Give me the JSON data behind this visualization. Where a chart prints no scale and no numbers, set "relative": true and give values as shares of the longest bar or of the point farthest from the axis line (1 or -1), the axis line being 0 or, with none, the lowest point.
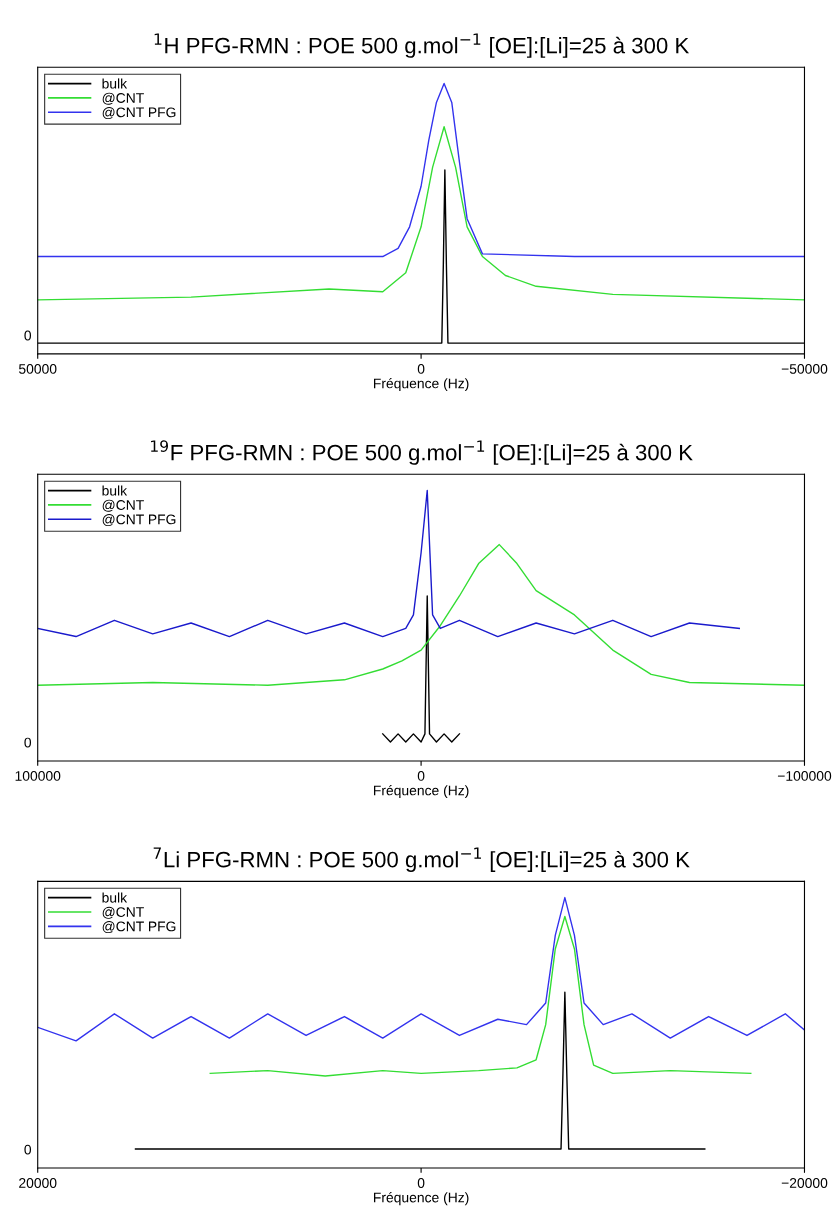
{
  "chart_data": [
    {
      "type": "line",
      "title": "$^{1}$H PFG-RMN : POE 500 g.mol$^{−1}$ [OE]:[Li]=25 à 300 K",
      "xlabel": "Fréquence (Hz)",
      "relative": true,
      "xlim": [
        50000,
        -50000
      ],
      "xticks": [
        50000,
        0,
        {
          "value": -50000,
          "label": "−50000"
        }
      ],
      "legend": "top left",
      "annotations": [
        "0"
      ],
      "series": [
        {
          "name": "bulk",
          "color": "#000000",
          "x": [
            50000,
            -2700,
            -2900,
            -3100,
            -3300,
            -3500,
            -50000
          ],
          "values": [
            0.04,
            0.04,
            0.33,
            0.68,
            0.33,
            0.04,
            0.04
          ]
        },
        {
          "name": "@CNT",
          "color": "#33dd33",
          "x": [
            50000,
            30000,
            12000,
            5000,
            2000,
            0,
            -1500,
            -3000,
            -4500,
            -6000,
            -8000,
            -11000,
            -15000,
            -25000,
            -50000
          ],
          "values": [
            0.2,
            0.21,
            0.24,
            0.23,
            0.3,
            0.47,
            0.69,
            0.84,
            0.69,
            0.47,
            0.36,
            0.29,
            0.25,
            0.22,
            0.2
          ]
        },
        {
          "name": "@CNT PFG",
          "color": "#3333ee",
          "x": [
            50000,
            20000,
            8000,
            5000,
            3000,
            1500,
            0,
            -1000,
            -2000,
            -3000,
            -4000,
            -5000,
            -6000,
            -8000,
            -20000,
            -50000
          ],
          "values": [
            0.36,
            0.36,
            0.36,
            0.36,
            0.39,
            0.47,
            0.62,
            0.79,
            0.93,
            1.0,
            0.93,
            0.71,
            0.5,
            0.37,
            0.36,
            0.36
          ]
        }
      ]
    },
    {
      "type": "line",
      "title": "$^{19}$F PFG-RMN : POE 500 g.mol$^{−1}$ [OE]:[Li]=25 à 300 K",
      "xlabel": "Fréquence (Hz)",
      "relative": true,
      "xlim": [
        100000,
        -100000
      ],
      "xticks": [
        100000,
        0,
        {
          "value": -100000,
          "label": "−100000"
        }
      ],
      "legend": "top left",
      "annotations": [
        "0"
      ],
      "series": [
        {
          "name": "bulk",
          "color": "#000000",
          "x": [
            10000,
            8000,
            6000,
            4000,
            2000,
            0,
            -1000,
            -1600,
            -2200,
            -4000,
            -6000,
            -8000,
            -10000
          ],
          "values": [
            0.1,
            0.07,
            0.1,
            0.07,
            0.1,
            0.07,
            0.1,
            0.61,
            0.1,
            0.07,
            0.1,
            0.07,
            0.1
          ]
        },
        {
          "name": "@CNT",
          "color": "#33dd33",
          "x": [
            100000,
            70000,
            40000,
            20000,
            10000,
            5000,
            0,
            -5000,
            -10000,
            -15000,
            -20400,
            -25000,
            -30000,
            -40000,
            -50000,
            -60000,
            -70000,
            -100000
          ],
          "values": [
            0.28,
            0.29,
            0.28,
            0.3,
            0.34,
            0.37,
            0.41,
            0.5,
            0.61,
            0.73,
            0.8,
            0.73,
            0.63,
            0.54,
            0.41,
            0.32,
            0.29,
            0.28
          ]
        },
        {
          "name": "@CNT PFG",
          "color": "#1a1acc",
          "x": [
            100000,
            90000,
            80000,
            70000,
            60000,
            50000,
            40000,
            30000,
            20000,
            10000,
            4000,
            2000,
            0,
            -1600,
            -3000,
            -5000,
            -10000,
            -20000,
            -30000,
            -40000,
            -50000,
            -60000,
            -70000,
            -83000
          ],
          "values": [
            0.49,
            0.46,
            0.52,
            0.47,
            0.51,
            0.46,
            0.52,
            0.47,
            0.51,
            0.46,
            0.49,
            0.54,
            0.77,
            1.0,
            0.54,
            0.49,
            0.52,
            0.46,
            0.51,
            0.47,
            0.52,
            0.46,
            0.51,
            0.49
          ]
        }
      ]
    },
    {
      "type": "line",
      "title": "$^{7}$Li PFG-RMN : POE 500 g.mol$^{−1}$ [OE]:[Li]=25 à 300 K",
      "xlabel": "Fréquence (Hz)",
      "relative": true,
      "xlim": [
        20000,
        -20000
      ],
      "xticks": [
        20000,
        0,
        {
          "value": -20000,
          "label": "−20000"
        }
      ],
      "legend": "top left",
      "annotations": [
        "0"
      ],
      "series": [
        {
          "name": "bulk",
          "color": "#000000",
          "x": [
            14900,
            -7300,
            -7400,
            -7500,
            -7600,
            -7700,
            -14800
          ],
          "values": [
            0.07,
            0.07,
            0.35,
            0.65,
            0.35,
            0.07,
            0.07
          ]
        },
        {
          "name": "@CNT",
          "color": "#33dd33",
          "x": [
            11000,
            8000,
            5000,
            2000,
            0,
            -3000,
            -5000,
            -6000,
            -6500,
            -7000,
            -7500,
            -8000,
            -8500,
            -9000,
            -10000,
            -13000,
            -17200
          ],
          "values": [
            0.35,
            0.36,
            0.34,
            0.36,
            0.35,
            0.36,
            0.37,
            0.4,
            0.53,
            0.81,
            0.93,
            0.81,
            0.53,
            0.38,
            0.35,
            0.36,
            0.35
          ]
        },
        {
          "name": "@CNT PFG",
          "color": "#3333ee",
          "x": [
            20000,
            18000,
            16000,
            14000,
            12000,
            10000,
            8000,
            6000,
            4000,
            2000,
            0,
            -2000,
            -4000,
            -5500,
            -6500,
            -7000,
            -7500,
            -8000,
            -8500,
            -9500,
            -11000,
            -13000,
            -15000,
            -17000,
            -19000,
            -20000
          ],
          "values": [
            0.52,
            0.47,
            0.57,
            0.48,
            0.56,
            0.48,
            0.57,
            0.49,
            0.56,
            0.48,
            0.57,
            0.49,
            0.55,
            0.53,
            0.61,
            0.86,
            1.0,
            0.86,
            0.61,
            0.53,
            0.57,
            0.48,
            0.56,
            0.49,
            0.57,
            0.51
          ]
        }
      ]
    }
  ]
}
